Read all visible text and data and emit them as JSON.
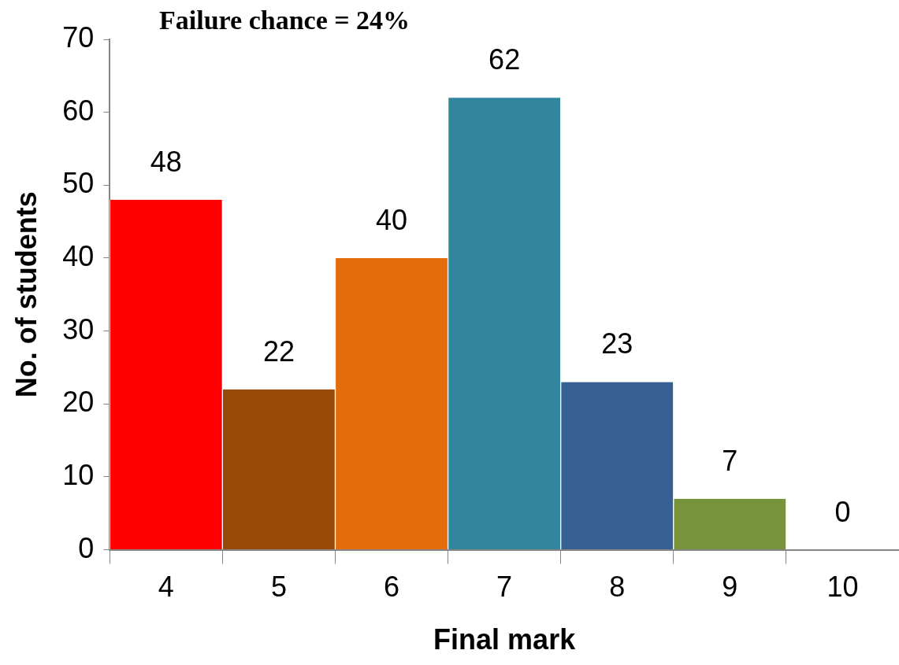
{
  "chart_data": {
    "type": "bar",
    "title": "Failure chance = 24%",
    "xlabel": "Final mark",
    "ylabel": "No. of students",
    "categories": [
      "4",
      "5",
      "6",
      "7",
      "8",
      "9",
      "10"
    ],
    "values": [
      48,
      22,
      40,
      62,
      23,
      7,
      0
    ],
    "colors": [
      "#ff0000",
      "#984807",
      "#e46c0a",
      "#31859c",
      "#376092",
      "#77933c",
      "#4f81bd"
    ],
    "ylim": [
      0,
      70
    ],
    "yticks": [
      0,
      10,
      20,
      30,
      40,
      50,
      60,
      70
    ],
    "grid": false,
    "legend": false,
    "data_labels": true
  }
}
